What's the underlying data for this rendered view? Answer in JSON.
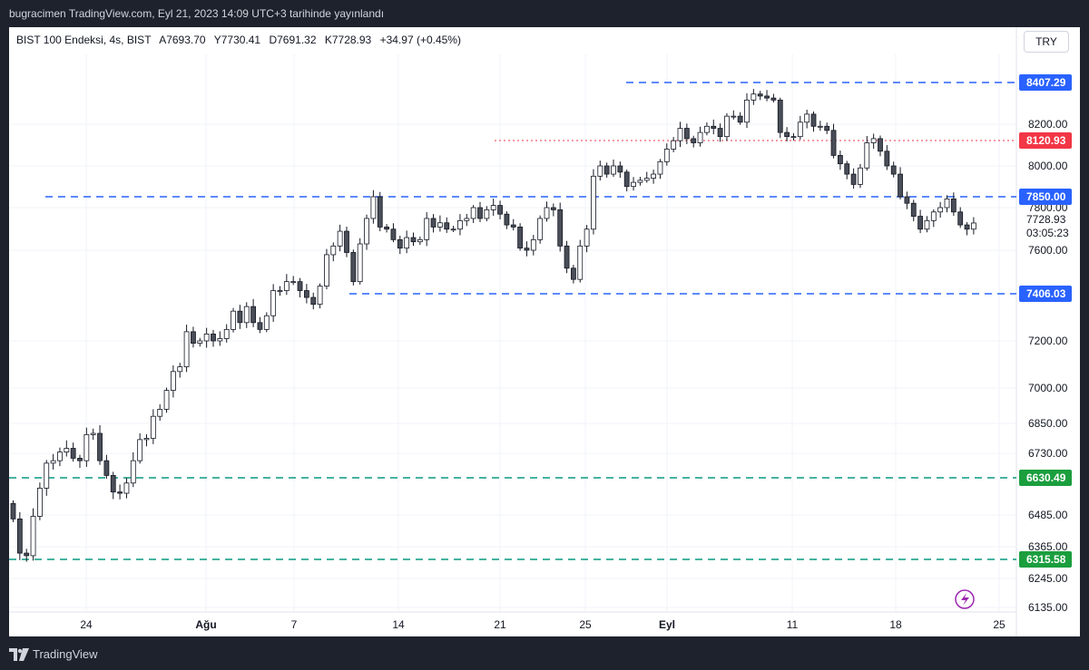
{
  "header": {
    "publication": "bugracimen TradingView.com, Eyl 21, 2023 14:09 UTC+3 tarihinde yayınlandı"
  },
  "legend": {
    "symbol": "BIST 100 Endeksi, 4s, BIST",
    "open": "A7693.70",
    "high": "Y7730.41",
    "low": "D7691.32",
    "close": "K7728.93",
    "change": "+34.97 (+0.45%)"
  },
  "currency_button": "TRY",
  "footer": {
    "brand": "TradingView"
  },
  "colors": {
    "up_body": "#ffffff",
    "down_body": "#4a4e58",
    "wick": "#131722",
    "blue_line": "#2962ff",
    "red_line": "#f23645",
    "green_line": "#089981",
    "green_label": "#1b9e3e"
  },
  "chart_data": {
    "type": "candlestick",
    "y_axis_ticks": [
      "8200.00",
      "8000.00",
      "7800.00",
      "7600.00",
      "7200.00",
      "7000.00",
      "6850.00",
      "6730.00",
      "6485.00",
      "6365.00",
      "6245.00",
      "6135.00"
    ],
    "x_axis_ticks": [
      "24",
      "Ağu",
      "7",
      "14",
      "21",
      "25",
      "Eyl",
      "11",
      "18",
      "25"
    ],
    "last_price": "7728.93",
    "countdown": "03:05:23",
    "horizontal_levels": [
      {
        "value": "8407.29",
        "color": "blue",
        "style": "dashed"
      },
      {
        "value": "8120.93",
        "color": "red",
        "style": "dotted"
      },
      {
        "value": "7850.00",
        "color": "blue",
        "style": "dashed"
      },
      {
        "value": "7406.03",
        "color": "blue",
        "style": "dashed"
      },
      {
        "value": "6630.49",
        "color": "green",
        "style": "dashed"
      },
      {
        "value": "6315.58",
        "color": "green",
        "style": "dashed"
      }
    ],
    "closes": [
      6470,
      6340,
      6330,
      6480,
      6590,
      6690,
      6700,
      6735,
      6750,
      6710,
      6700,
      6805,
      6810,
      6700,
      6640,
      6575,
      6570,
      6610,
      6700,
      6785,
      6790,
      6880,
      6910,
      6990,
      7070,
      7090,
      7240,
      7190,
      7200,
      7230,
      7200,
      7210,
      7250,
      7330,
      7280,
      7350,
      7280,
      7250,
      7310,
      7420,
      7420,
      7460,
      7460,
      7420,
      7390,
      7360,
      7440,
      7580,
      7620,
      7690,
      7590,
      7460,
      7630,
      7750,
      7850,
      7710,
      7700,
      7650,
      7610,
      7660,
      7640,
      7650,
      7750,
      7710,
      7730,
      7700,
      7700,
      7740,
      7750,
      7800,
      7750,
      7790,
      7810,
      7770,
      7720,
      7710,
      7610,
      7600,
      7650,
      7750,
      7800,
      7790,
      7620,
      7520,
      7470,
      7620,
      7700,
      7950,
      8000,
      7960,
      8000,
      7970,
      7900,
      7920,
      7930,
      7940,
      7960,
      8020,
      8080,
      8120,
      8180,
      8130,
      8110,
      8160,
      8190,
      8180,
      8140,
      8240,
      8240,
      8210,
      8320,
      8350,
      8340,
      8330,
      8320,
      8160,
      8140,
      8140,
      8210,
      8250,
      8190,
      8190,
      8170,
      8050,
      8010,
      7960,
      7910,
      7990,
      8110,
      8130,
      8070,
      8000,
      7960,
      7850,
      7820,
      7760,
      7700,
      7740,
      7780,
      7800,
      7840,
      7780,
      7720,
      7700,
      7729
    ]
  }
}
